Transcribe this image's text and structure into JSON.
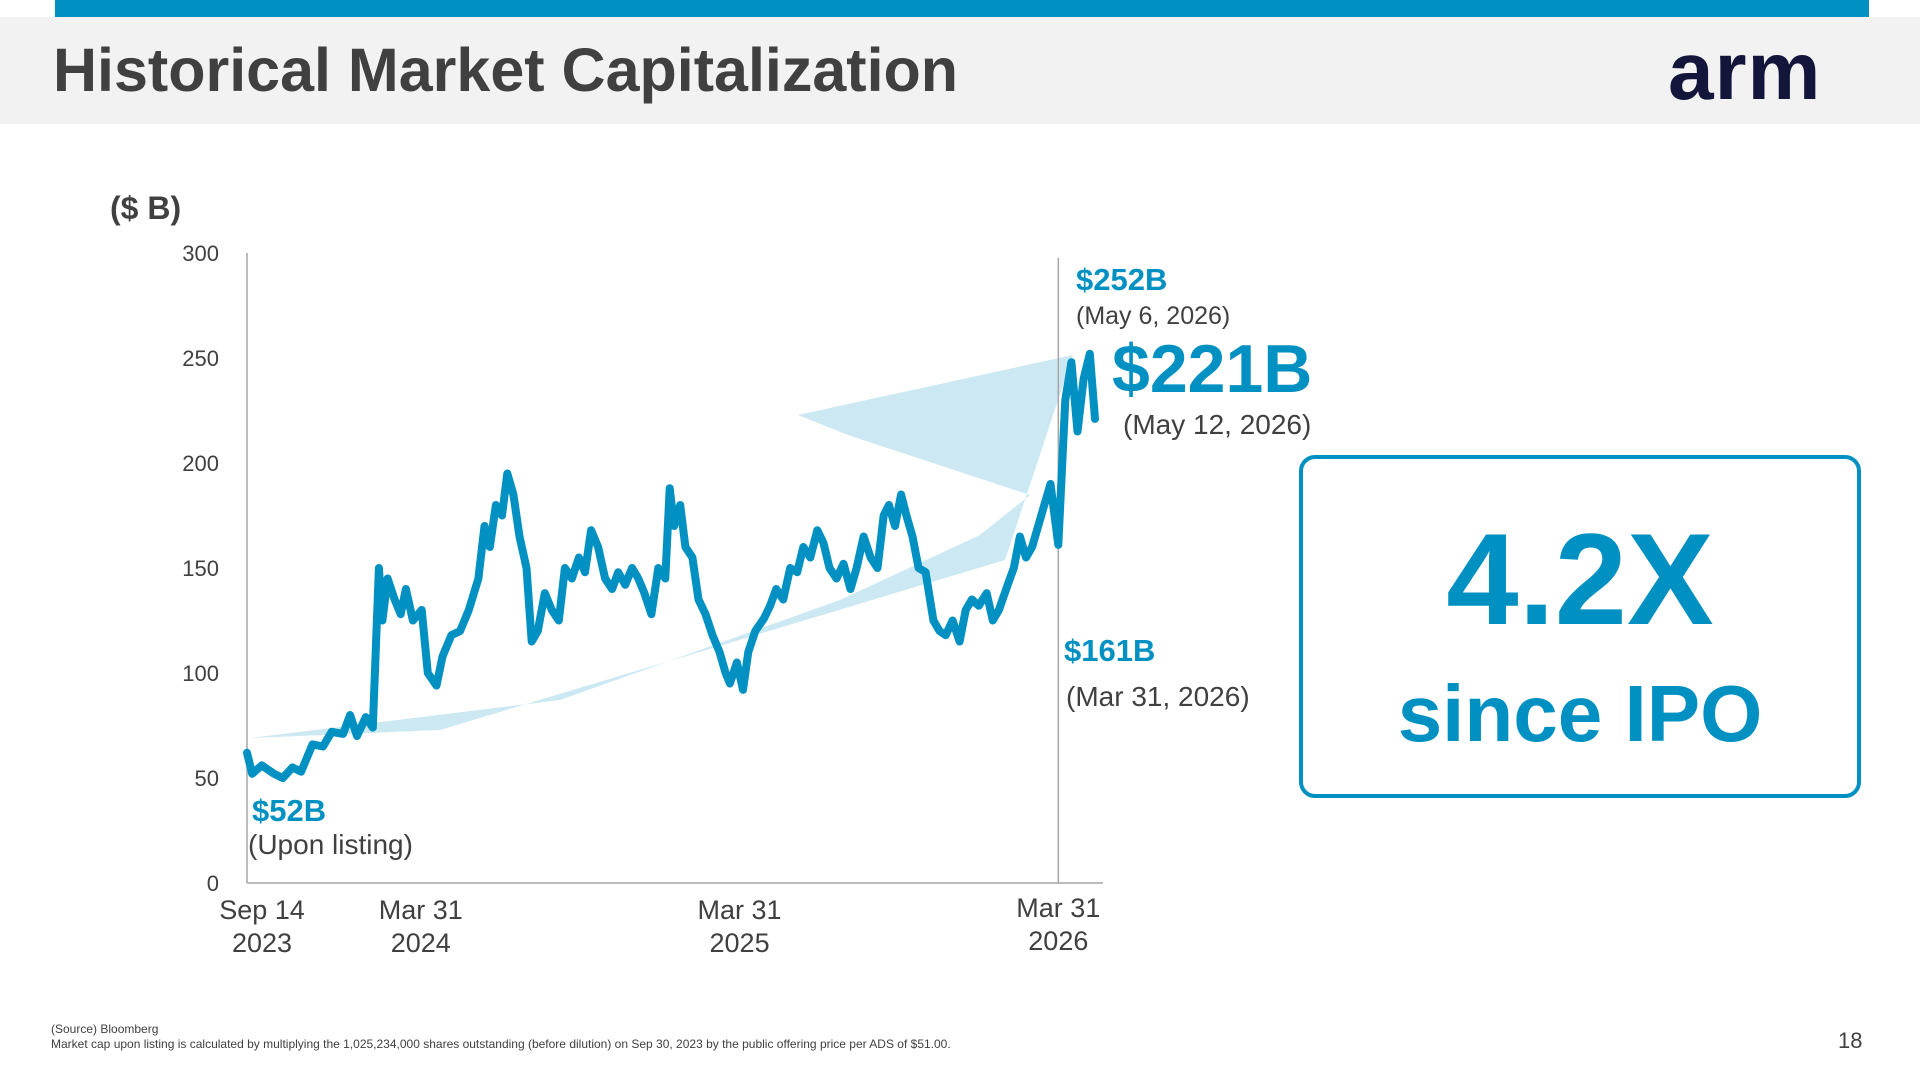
{
  "header": {
    "title": "Historical Market Capitalization",
    "logo_text": "arm"
  },
  "chart_data": {
    "type": "line",
    "ylabel": "($ B)",
    "ylim": [
      0,
      300
    ],
    "y_ticks": [
      0,
      50,
      100,
      150,
      200,
      250,
      300
    ],
    "x_ticks": [
      {
        "date": "2023-09-14",
        "line1": "Sep 14",
        "line2": "2023"
      },
      {
        "date": "2024-03-31",
        "line1": "Mar 31",
        "line2": "2024"
      },
      {
        "date": "2025-03-31",
        "line1": "Mar 31",
        "line2": "2025"
      },
      {
        "date": "2026-03-31",
        "line1": "Mar 31",
        "line2": "2026"
      }
    ],
    "xlim": [
      "2023-09-14",
      "2026-05-12"
    ],
    "reference_line_date": "2026-03-31",
    "series": [
      {
        "color": "#0091c2",
        "points": [
          [
            "2023-09-14",
            62
          ],
          [
            "2023-09-20",
            52
          ],
          [
            "2023-10-01",
            56
          ],
          [
            "2023-10-15",
            52
          ],
          [
            "2023-10-25",
            50
          ],
          [
            "2023-11-05",
            55
          ],
          [
            "2023-11-15",
            53
          ],
          [
            "2023-11-28",
            66
          ],
          [
            "2023-12-10",
            65
          ],
          [
            "2023-12-20",
            72
          ],
          [
            "2024-01-02",
            71
          ],
          [
            "2024-01-10",
            80
          ],
          [
            "2024-01-18",
            70
          ],
          [
            "2024-01-28",
            79
          ],
          [
            "2024-02-05",
            74
          ],
          [
            "2024-02-12",
            150
          ],
          [
            "2024-02-16",
            125
          ],
          [
            "2024-02-22",
            145
          ],
          [
            "2024-03-01",
            135
          ],
          [
            "2024-03-08",
            128
          ],
          [
            "2024-03-14",
            140
          ],
          [
            "2024-03-22",
            125
          ],
          [
            "2024-04-01",
            130
          ],
          [
            "2024-04-08",
            100
          ],
          [
            "2024-04-18",
            94
          ],
          [
            "2024-04-25",
            108
          ],
          [
            "2024-05-05",
            118
          ],
          [
            "2024-05-15",
            120
          ],
          [
            "2024-05-25",
            130
          ],
          [
            "2024-06-05",
            145
          ],
          [
            "2024-06-12",
            170
          ],
          [
            "2024-06-18",
            160
          ],
          [
            "2024-06-25",
            180
          ],
          [
            "2024-07-02",
            175
          ],
          [
            "2024-07-08",
            195
          ],
          [
            "2024-07-15",
            185
          ],
          [
            "2024-07-22",
            165
          ],
          [
            "2024-07-30",
            150
          ],
          [
            "2024-08-05",
            115
          ],
          [
            "2024-08-12",
            120
          ],
          [
            "2024-08-20",
            138
          ],
          [
            "2024-08-28",
            130
          ],
          [
            "2024-09-05",
            125
          ],
          [
            "2024-09-12",
            150
          ],
          [
            "2024-09-20",
            145
          ],
          [
            "2024-09-28",
            155
          ],
          [
            "2024-10-05",
            148
          ],
          [
            "2024-10-12",
            168
          ],
          [
            "2024-10-20",
            160
          ],
          [
            "2024-10-28",
            145
          ],
          [
            "2024-11-05",
            140
          ],
          [
            "2024-11-12",
            148
          ],
          [
            "2024-11-20",
            142
          ],
          [
            "2024-11-28",
            150
          ],
          [
            "2024-12-05",
            145
          ],
          [
            "2024-12-12",
            138
          ],
          [
            "2024-12-20",
            128
          ],
          [
            "2024-12-28",
            150
          ],
          [
            "2025-01-05",
            145
          ],
          [
            "2025-01-10",
            188
          ],
          [
            "2025-01-15",
            170
          ],
          [
            "2025-01-22",
            180
          ],
          [
            "2025-01-28",
            160
          ],
          [
            "2025-02-05",
            155
          ],
          [
            "2025-02-12",
            135
          ],
          [
            "2025-02-20",
            128
          ],
          [
            "2025-02-28",
            118
          ],
          [
            "2025-03-08",
            110
          ],
          [
            "2025-03-15",
            100
          ],
          [
            "2025-03-20",
            95
          ],
          [
            "2025-03-28",
            105
          ],
          [
            "2025-04-04",
            92
          ],
          [
            "2025-04-10",
            110
          ],
          [
            "2025-04-18",
            120
          ],
          [
            "2025-04-28",
            126
          ],
          [
            "2025-05-05",
            132
          ],
          [
            "2025-05-12",
            140
          ],
          [
            "2025-05-20",
            135
          ],
          [
            "2025-05-28",
            150
          ],
          [
            "2025-06-05",
            148
          ],
          [
            "2025-06-12",
            160
          ],
          [
            "2025-06-20",
            155
          ],
          [
            "2025-06-28",
            168
          ],
          [
            "2025-07-05",
            162
          ],
          [
            "2025-07-12",
            150
          ],
          [
            "2025-07-20",
            145
          ],
          [
            "2025-07-28",
            152
          ],
          [
            "2025-08-05",
            140
          ],
          [
            "2025-08-12",
            150
          ],
          [
            "2025-08-20",
            165
          ],
          [
            "2025-08-28",
            155
          ],
          [
            "2025-09-05",
            150
          ],
          [
            "2025-09-12",
            175
          ],
          [
            "2025-09-18",
            180
          ],
          [
            "2025-09-25",
            170
          ],
          [
            "2025-10-02",
            185
          ],
          [
            "2025-10-08",
            175
          ],
          [
            "2025-10-15",
            165
          ],
          [
            "2025-10-22",
            150
          ],
          [
            "2025-10-30",
            148
          ],
          [
            "2025-11-08",
            125
          ],
          [
            "2025-11-15",
            120
          ],
          [
            "2025-11-22",
            118
          ],
          [
            "2025-11-30",
            125
          ],
          [
            "2025-12-08",
            115
          ],
          [
            "2025-12-15",
            130
          ],
          [
            "2025-12-22",
            135
          ],
          [
            "2025-12-30",
            132
          ],
          [
            "2026-01-08",
            138
          ],
          [
            "2026-01-15",
            125
          ],
          [
            "2026-01-22",
            130
          ],
          [
            "2026-02-01",
            142
          ],
          [
            "2026-02-08",
            150
          ],
          [
            "2026-02-15",
            165
          ],
          [
            "2026-02-22",
            155
          ],
          [
            "2026-03-01",
            160
          ],
          [
            "2026-03-08",
            170
          ],
          [
            "2026-03-15",
            180
          ],
          [
            "2026-03-22",
            190
          ],
          [
            "2026-03-31",
            161
          ],
          [
            "2026-04-08",
            230
          ],
          [
            "2026-04-15",
            248
          ],
          [
            "2026-04-22",
            215
          ],
          [
            "2026-04-29",
            240
          ],
          [
            "2026-05-06",
            252
          ],
          [
            "2026-05-12",
            221
          ]
        ]
      }
    ],
    "annotations": [
      {
        "value": "$52B",
        "label": "(Upon listing)"
      },
      {
        "value": "$161B",
        "label": "(Mar 31, 2026)"
      },
      {
        "value": "$252B",
        "label": "(May 6, 2026)"
      },
      {
        "value": "$221B",
        "label": "(May 12, 2026)"
      }
    ]
  },
  "multiple_box": {
    "value": "4.2X",
    "label": "since IPO"
  },
  "footnote": {
    "source": "(Source) Bloomberg",
    "note": "Market cap upon listing is calculated by multiplying the 1,025,234,000 shares outstanding (before dilution) on Sep 30, 2023 by the public offering price per ADS of $51.00."
  },
  "page_number": "18"
}
